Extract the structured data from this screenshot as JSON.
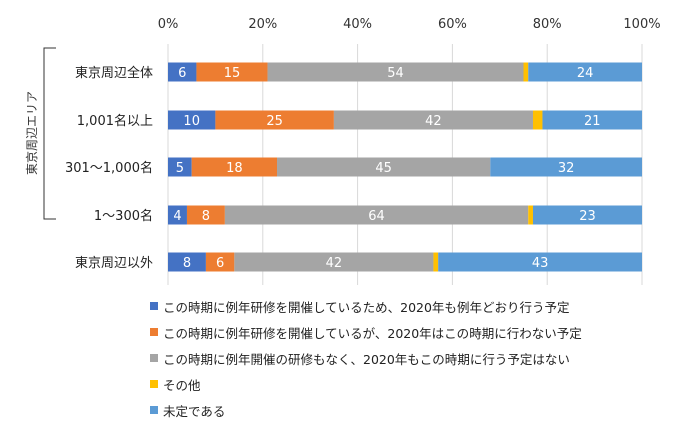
{
  "chart_data": {
    "type": "bar",
    "orientation": "horizontal",
    "stacked": true,
    "categories": [
      "東京周辺全体",
      "1,001名以上",
      "301～1,000名",
      "1～300名",
      "東京周辺以外"
    ],
    "group_label": "東京周辺エリア",
    "xlim": [
      0,
      100
    ],
    "x_ticks": [
      "0%",
      "20%",
      "40%",
      "60%",
      "80%",
      "100%"
    ],
    "legend_position": "bottom",
    "series": [
      {
        "name": "この時期に例年研修を開催しているため、2020年も例年どおり行う予定",
        "color": "#4472c4",
        "values": [
          6,
          10,
          5,
          4,
          8
        ]
      },
      {
        "name": "この時期に例年研修を開催しているが、2020年はこの時期に行わない予定",
        "color": "#ed7d31",
        "values": [
          15,
          25,
          18,
          8,
          6
        ]
      },
      {
        "name": "この時期に例年開催の研修もなく、2020年もこの時期に行う予定はない",
        "color": "#a5a5a5",
        "values": [
          54,
          42,
          45,
          64,
          42
        ]
      },
      {
        "name": "その他",
        "color": "#ffc000",
        "values": [
          1,
          2,
          0,
          1,
          1
        ]
      },
      {
        "name": "未定である",
        "color": "#5b9bd5",
        "values": [
          24,
          21,
          32,
          23,
          43
        ]
      }
    ],
    "data_labels": [
      [
        "6",
        "15",
        "54",
        "",
        "24"
      ],
      [
        "10",
        "25",
        "42",
        "",
        "21"
      ],
      [
        "5",
        "18",
        "45",
        "",
        "32"
      ],
      [
        "4",
        "8",
        "64",
        "",
        "23"
      ],
      [
        "8",
        "6",
        "42",
        "",
        "43"
      ]
    ]
  }
}
